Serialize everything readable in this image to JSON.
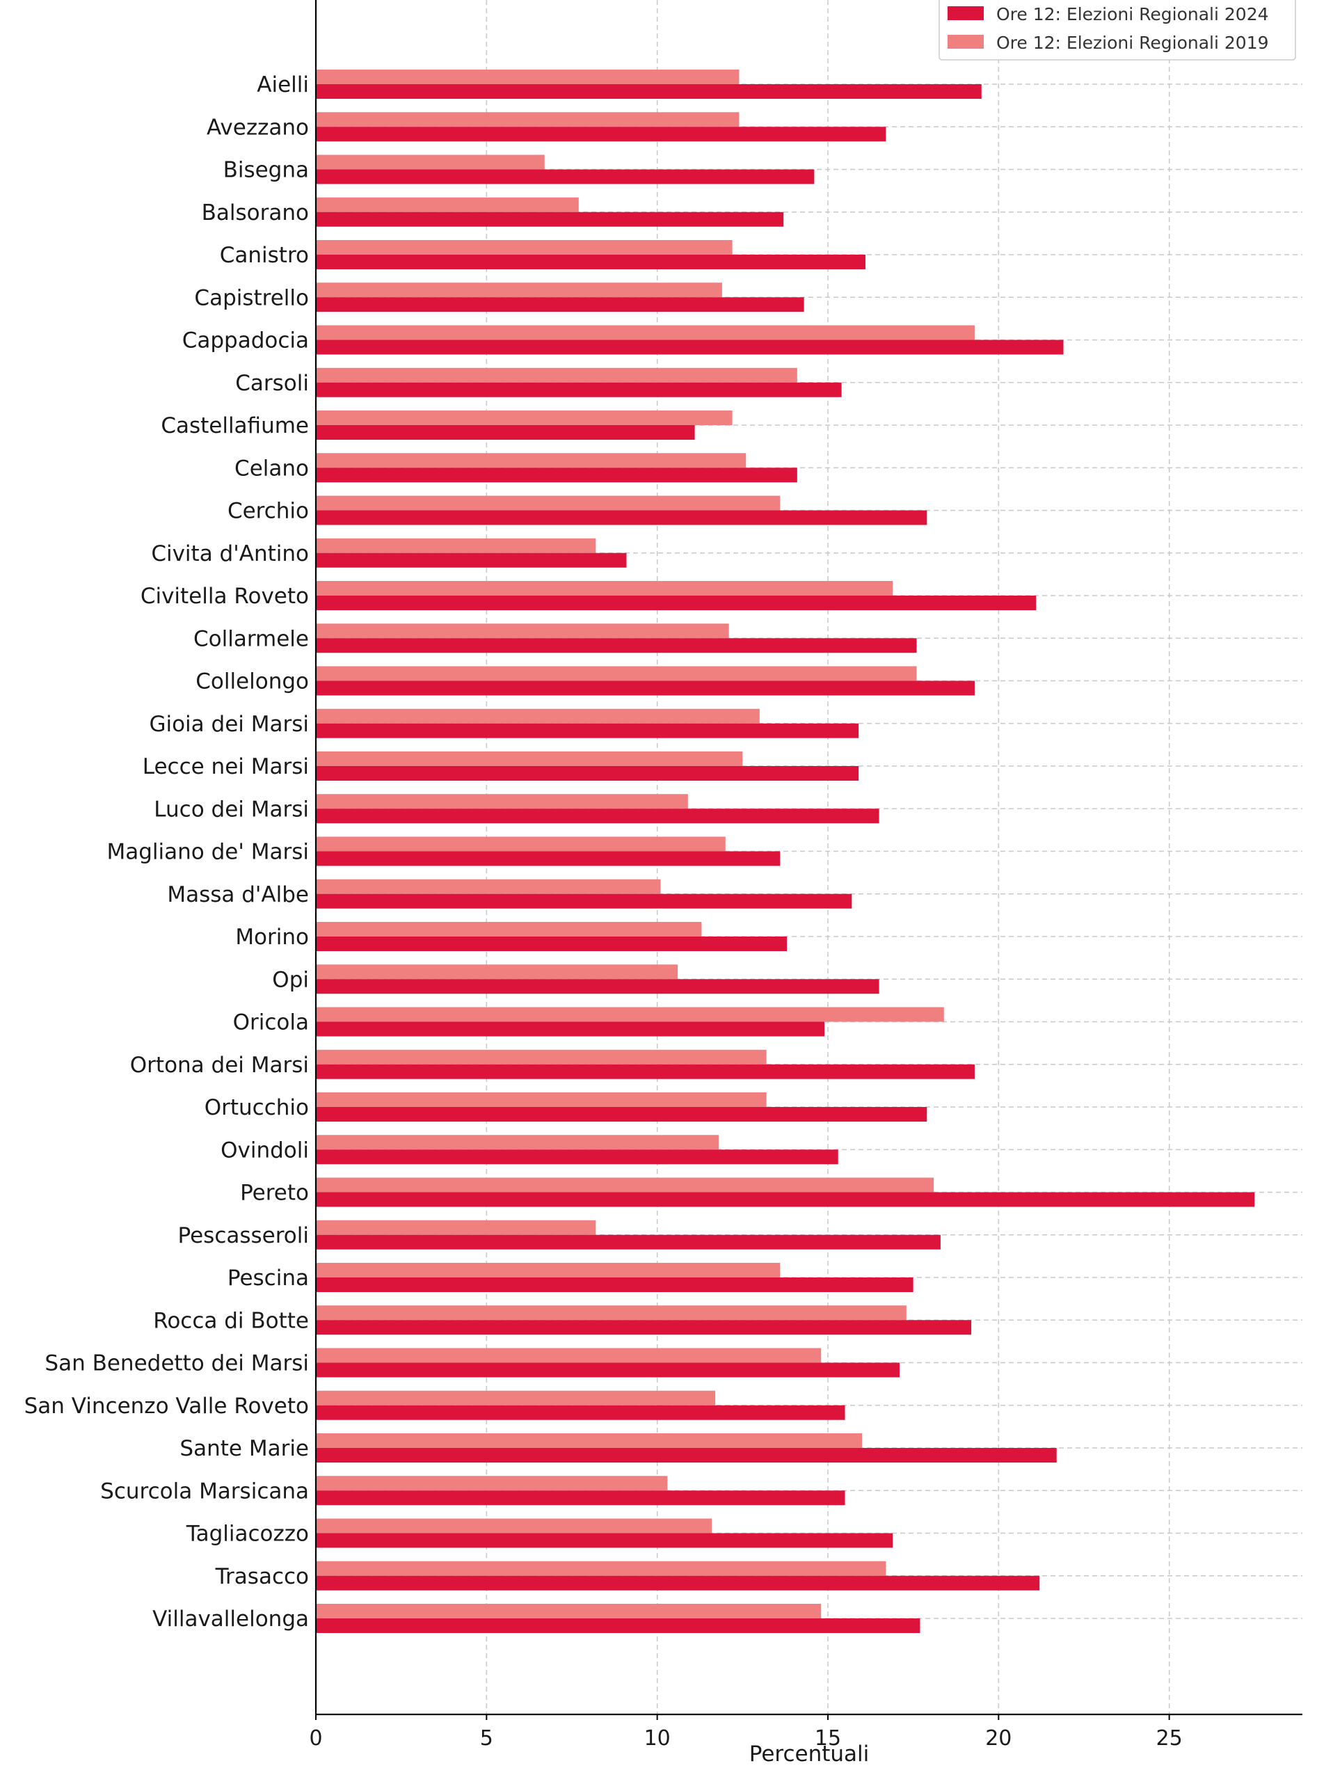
{
  "chart_data": {
    "type": "bar",
    "orientation": "horizontal",
    "title": "",
    "xlabel": "Percentuali",
    "ylabel": "",
    "xlim": [
      0,
      28.9
    ],
    "xticks": [
      0,
      5,
      10,
      15,
      20,
      25
    ],
    "grid": true,
    "legend_position": "top-right",
    "categories": [
      "Aielli",
      "Avezzano",
      "Bisegna",
      "Balsorano",
      "Canistro",
      "Capistrello",
      "Cappadocia",
      "Carsoli",
      "Castellafiume",
      "Celano",
      "Cerchio",
      "Civita d'Antino",
      "Civitella Roveto",
      "Collarmele",
      "Collelongo",
      "Gioia dei Marsi",
      "Lecce nei Marsi",
      "Luco dei Marsi",
      "Magliano de' Marsi",
      "Massa d'Albe",
      "Morino",
      "Opi",
      "Oricola",
      "Ortona dei Marsi",
      "Ortucchio",
      "Ovindoli",
      "Pereto",
      "Pescasseroli",
      "Pescina",
      "Rocca di Botte",
      "San Benedetto dei Marsi",
      "San Vincenzo Valle Roveto",
      "Sante Marie",
      "Scurcola Marsicana",
      "Tagliacozzo",
      "Trasacco",
      "Villavallelonga"
    ],
    "series": [
      {
        "name": "Ore 12: Elezioni Regionali 2024",
        "color": "#dc143c",
        "values": [
          19.5,
          16.7,
          14.6,
          13.7,
          16.1,
          14.3,
          21.9,
          15.4,
          11.1,
          14.1,
          17.9,
          9.1,
          21.1,
          17.6,
          19.3,
          15.9,
          15.9,
          16.5,
          13.6,
          15.7,
          13.8,
          16.5,
          14.9,
          19.3,
          17.9,
          15.3,
          27.5,
          18.3,
          17.5,
          19.2,
          17.1,
          15.5,
          21.7,
          15.5,
          16.9,
          21.2,
          17.7
        ]
      },
      {
        "name": "Ore 12: Elezioni Regionali 2019",
        "color": "#f08080",
        "values": [
          12.4,
          12.4,
          6.7,
          7.7,
          12.2,
          11.9,
          19.3,
          14.1,
          12.2,
          12.6,
          13.6,
          8.2,
          16.9,
          12.1,
          17.6,
          13.0,
          12.5,
          10.9,
          12.0,
          10.1,
          11.3,
          10.6,
          18.4,
          13.2,
          13.2,
          11.8,
          18.1,
          8.2,
          13.6,
          17.3,
          14.8,
          11.7,
          16.0,
          10.3,
          11.6,
          16.7,
          14.8
        ]
      }
    ]
  }
}
